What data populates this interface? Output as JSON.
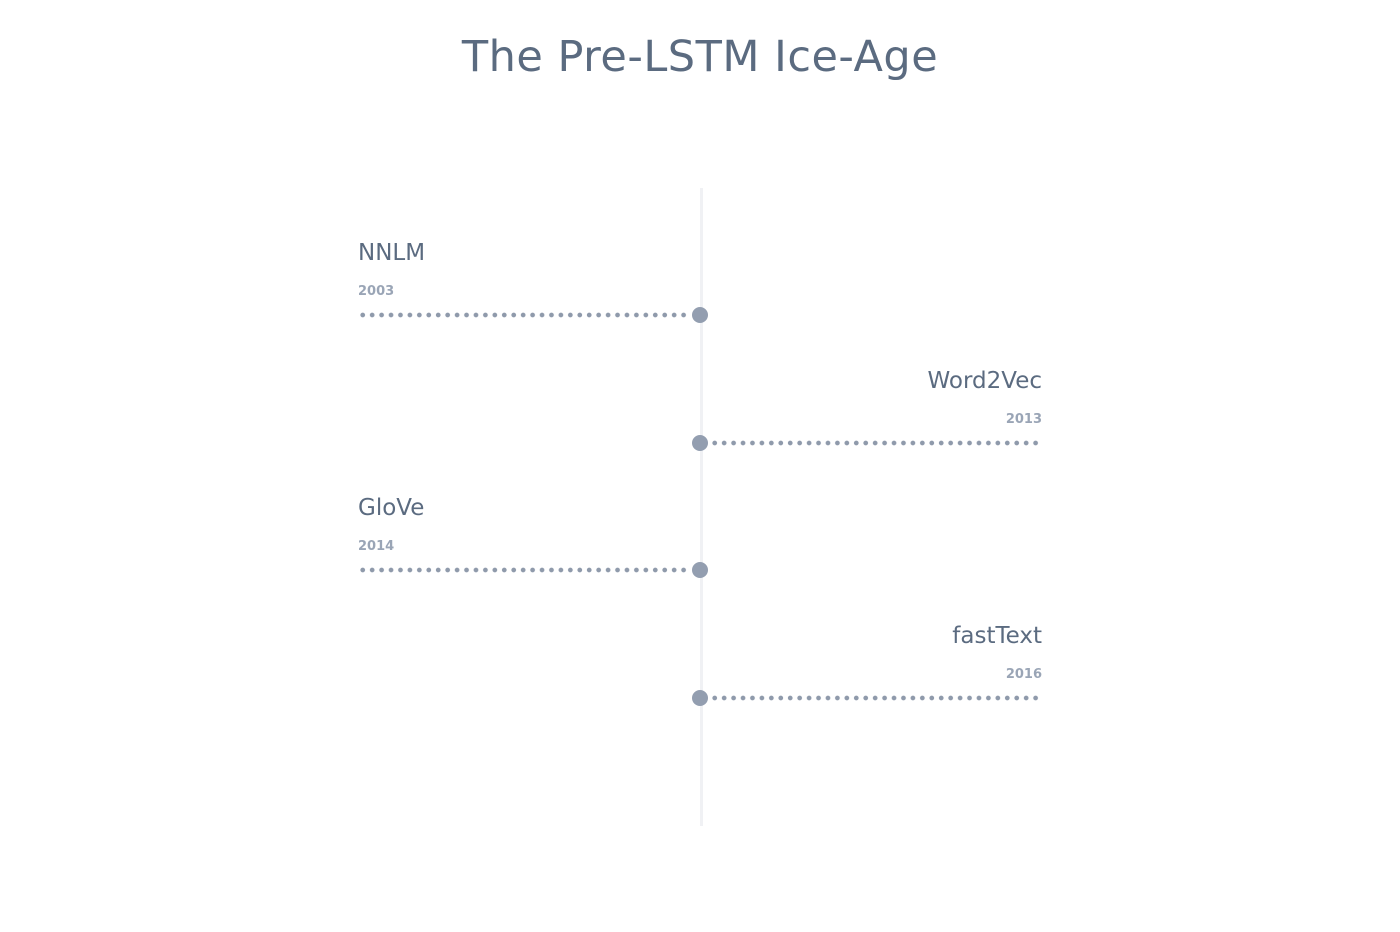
{
  "title": "The Pre-LSTM Ice-Age",
  "events": [
    {
      "name": "NNLM",
      "year": "2003",
      "side": "left"
    },
    {
      "name": "Word2Vec",
      "year": "2013",
      "side": "right"
    },
    {
      "name": "GloVe",
      "year": "2014",
      "side": "left"
    },
    {
      "name": "fastText",
      "year": "2016",
      "side": "right"
    }
  ],
  "colors": {
    "title": "#5b6b80",
    "label": "#5b6b80",
    "year": "#9aa5b6",
    "node": "#939eb0",
    "dots": "#8f9aab",
    "axis": "#f0f1f4"
  }
}
